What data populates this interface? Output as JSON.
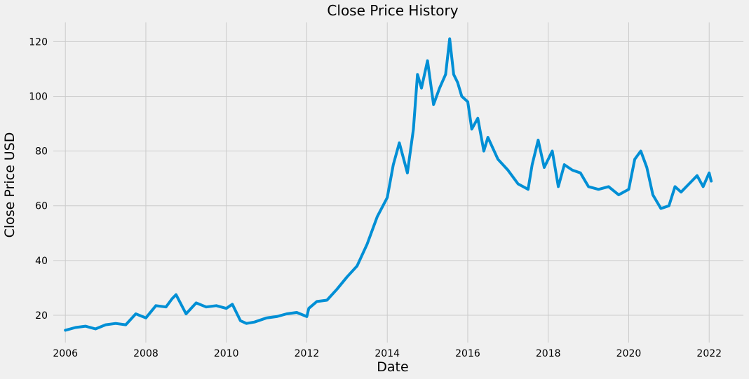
{
  "chart_data": {
    "type": "line",
    "title": "Close Price History",
    "xlabel": "Date",
    "ylabel": "Close Price USD",
    "xlim": [
      2005.7,
      2022.85
    ],
    "ylim": [
      10,
      127
    ],
    "x_ticks": [
      2006,
      2008,
      2010,
      2012,
      2014,
      2016,
      2018,
      2020,
      2022
    ],
    "x_tick_labels": [
      "2006",
      "2008",
      "2010",
      "2012",
      "2014",
      "2016",
      "2018",
      "2020",
      "2022"
    ],
    "y_ticks": [
      20,
      40,
      60,
      80,
      100,
      120
    ],
    "y_tick_labels": [
      "20",
      "40",
      "60",
      "80",
      "100",
      "120"
    ],
    "grid": true,
    "legend": false,
    "series": [
      {
        "color": "#008fd5",
        "x": [
          2006.0,
          2006.25,
          2006.5,
          2006.75,
          2007.0,
          2007.25,
          2007.5,
          2007.75,
          2008.0,
          2008.25,
          2008.5,
          2008.65,
          2008.75,
          2009.0,
          2009.25,
          2009.5,
          2009.75,
          2010.0,
          2010.15,
          2010.35,
          2010.5,
          2010.7,
          2011.0,
          2011.25,
          2011.5,
          2011.75,
          2012.0,
          2012.05,
          2012.25,
          2012.5,
          2012.75,
          2013.0,
          2013.25,
          2013.5,
          2013.75,
          2014.0,
          2014.15,
          2014.3,
          2014.5,
          2014.65,
          2014.75,
          2014.85,
          2015.0,
          2015.15,
          2015.3,
          2015.45,
          2015.55,
          2015.65,
          2015.75,
          2015.85,
          2016.0,
          2016.1,
          2016.25,
          2016.4,
          2016.5,
          2016.75,
          2017.0,
          2017.25,
          2017.5,
          2017.6,
          2017.75,
          2017.9,
          2018.1,
          2018.25,
          2018.4,
          2018.6,
          2018.8,
          2019.0,
          2019.25,
          2019.5,
          2019.75,
          2020.0,
          2020.15,
          2020.3,
          2020.45,
          2020.6,
          2020.8,
          2021.0,
          2021.15,
          2021.3,
          2021.5,
          2021.7,
          2021.85,
          2022.0,
          2022.05
        ],
        "y": [
          14.5,
          15.5,
          16.0,
          15.0,
          16.5,
          17.0,
          16.5,
          20.5,
          19.0,
          23.5,
          23.0,
          26.0,
          27.5,
          20.5,
          24.5,
          23.0,
          23.5,
          22.5,
          24.0,
          18.0,
          17.0,
          17.5,
          19.0,
          19.5,
          20.5,
          21.0,
          19.5,
          22.5,
          25.0,
          25.5,
          29.5,
          34.0,
          38.0,
          46.0,
          56.0,
          63.0,
          75.0,
          83.0,
          72.0,
          88.0,
          108.0,
          103.0,
          113.0,
          97.0,
          103.0,
          108.0,
          121.0,
          108.0,
          105.0,
          100.0,
          98.0,
          88.0,
          92.0,
          80.0,
          85.0,
          77.0,
          73.0,
          68.0,
          66.0,
          75.0,
          84.0,
          74.0,
          80.0,
          67.0,
          75.0,
          73.0,
          72.0,
          67.0,
          66.0,
          67.0,
          64.0,
          66.0,
          77.0,
          80.0,
          74.0,
          64.0,
          59.0,
          60.0,
          67.0,
          65.0,
          68.0,
          71.0,
          67.0,
          72.0,
          69.0
        ]
      }
    ]
  }
}
